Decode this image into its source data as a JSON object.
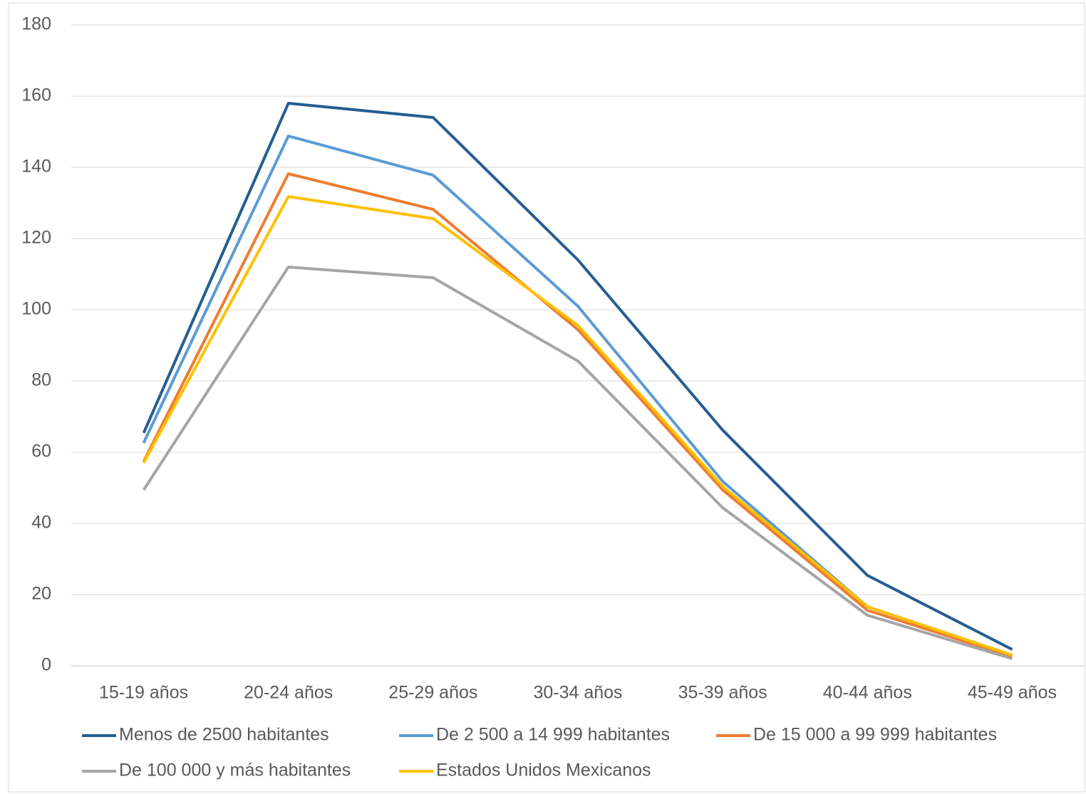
{
  "chart_data": {
    "type": "line",
    "categories": [
      "15-19 años",
      "20-24 años",
      "25-29 años",
      "30-34 años",
      "35-39 años",
      "40-44 años",
      "45-49 años"
    ],
    "series": [
      {
        "name": "Menos de 2500 habitantes",
        "color": "#255e91",
        "values": [
          65.4,
          158,
          154,
          114,
          66.2,
          25.4,
          4.6
        ]
      },
      {
        "name": "De 2 500 a 14 999 habitantes",
        "color": "#5b9bd5",
        "values": [
          62.6,
          148.8,
          137.8,
          101,
          51.8,
          16.6,
          3
        ]
      },
      {
        "name": "De 15 000 a 99 999 habitantes",
        "color": "#ed7d31",
        "values": [
          57.4,
          138.2,
          128.2,
          94.4,
          49.4,
          15.6,
          2.6
        ]
      },
      {
        "name": "De 100 000 y más habitantes",
        "color": "#a5a5a5",
        "values": [
          49.4,
          112,
          109,
          85.6,
          44.4,
          14.2,
          2
        ]
      },
      {
        "name": "Estados Unidos Mexicanos",
        "color": "#ffc000",
        "values": [
          57,
          131.8,
          125.6,
          95.6,
          50.4,
          16.6,
          3
        ]
      }
    ],
    "ylim": [
      0,
      180
    ],
    "yticks": [
      0,
      20,
      40,
      60,
      80,
      100,
      120,
      140,
      160,
      180
    ],
    "grid": true,
    "legend": "bottom"
  }
}
